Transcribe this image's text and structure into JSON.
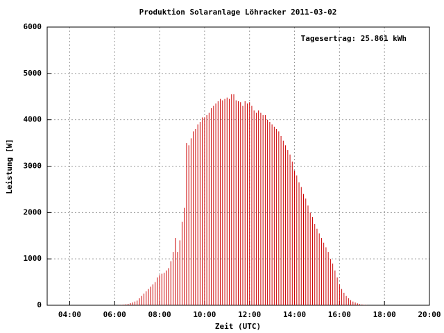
{
  "chart_data": {
    "type": "impulse",
    "title": "Produktion Solaranlage Löhracker 2011-03-02",
    "annotation": "Tagesertrag: 25.861 kWh",
    "xlabel": "Zeit (UTC)",
    "ylabel": "Leistung [W]",
    "color": "#cc0000",
    "grid": true,
    "xlim": [
      3,
      20
    ],
    "ylim": [
      0,
      6000
    ],
    "xticks": [
      {
        "value": 4,
        "label": "04:00"
      },
      {
        "value": 6,
        "label": "06:00"
      },
      {
        "value": 8,
        "label": "08:00"
      },
      {
        "value": 10,
        "label": "10:00"
      },
      {
        "value": 12,
        "label": "12:00"
      },
      {
        "value": 14,
        "label": "14:00"
      },
      {
        "value": 16,
        "label": "16:00"
      },
      {
        "value": 18,
        "label": "18:00"
      },
      {
        "value": 20,
        "label": "20:00"
      }
    ],
    "yticks": [
      0,
      1000,
      2000,
      3000,
      4000,
      5000,
      6000
    ],
    "x": [
      6.2,
      6.3,
      6.4,
      6.5,
      6.6,
      6.7,
      6.8,
      6.9,
      7.0,
      7.1,
      7.2,
      7.3,
      7.4,
      7.5,
      7.6,
      7.7,
      7.8,
      7.9,
      8.0,
      8.1,
      8.2,
      8.3,
      8.4,
      8.5,
      8.6,
      8.7,
      8.8,
      8.9,
      9.0,
      9.1,
      9.2,
      9.3,
      9.4,
      9.5,
      9.6,
      9.7,
      9.8,
      9.9,
      10.0,
      10.1,
      10.2,
      10.3,
      10.4,
      10.5,
      10.6,
      10.7,
      10.8,
      10.9,
      11.0,
      11.1,
      11.2,
      11.3,
      11.4,
      11.5,
      11.6,
      11.7,
      11.8,
      11.9,
      12.0,
      12.1,
      12.2,
      12.3,
      12.4,
      12.5,
      12.6,
      12.7,
      12.8,
      12.9,
      13.0,
      13.1,
      13.2,
      13.3,
      13.4,
      13.5,
      13.6,
      13.7,
      13.8,
      13.9,
      14.0,
      14.1,
      14.2,
      14.3,
      14.4,
      14.5,
      14.6,
      14.7,
      14.8,
      14.9,
      15.0,
      15.1,
      15.2,
      15.3,
      15.4,
      15.5,
      15.6,
      15.7,
      15.8,
      15.9,
      16.0,
      16.1,
      16.2,
      16.3,
      16.4,
      16.5,
      16.6,
      16.7,
      16.8,
      16.9,
      17.0,
      17.1,
      17.2
    ],
    "values": [
      5,
      8,
      12,
      20,
      30,
      45,
      60,
      80,
      100,
      150,
      200,
      250,
      300,
      350,
      400,
      450,
      500,
      600,
      650,
      680,
      700,
      750,
      800,
      950,
      1150,
      1450,
      1150,
      1400,
      1800,
      2100,
      3500,
      3450,
      3600,
      3750,
      3800,
      3900,
      3950,
      4050,
      4050,
      4100,
      4150,
      4250,
      4300,
      4350,
      4400,
      4450,
      4420,
      4450,
      4480,
      4450,
      4550,
      4550,
      4420,
      4400,
      4380,
      4300,
      4400,
      4350,
      4380,
      4300,
      4200,
      4150,
      4200,
      4150,
      4100,
      4100,
      4000,
      3950,
      3900,
      3850,
      3800,
      3750,
      3650,
      3550,
      3450,
      3350,
      3250,
      3100,
      2900,
      2800,
      2650,
      2550,
      2400,
      2300,
      2150,
      2000,
      1900,
      1750,
      1650,
      1550,
      1450,
      1350,
      1250,
      1150,
      1000,
      900,
      750,
      600,
      450,
      350,
      270,
      200,
      150,
      110,
      80,
      60,
      40,
      25,
      15,
      8,
      4
    ]
  }
}
